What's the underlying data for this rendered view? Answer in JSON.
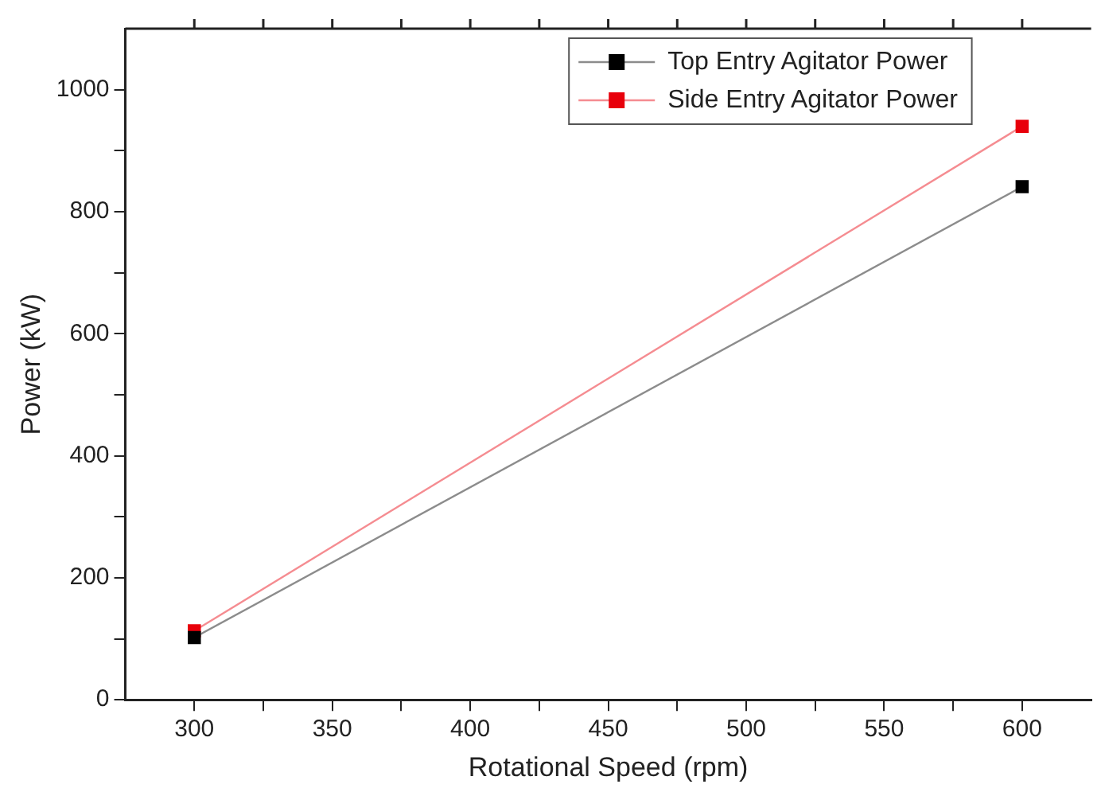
{
  "chart_data": {
    "type": "line",
    "xlabel": "Rotational Speed (rpm)",
    "ylabel": "Power (kW)",
    "x": [
      300,
      600
    ],
    "series": [
      {
        "name": "Top Entry Agitator Power",
        "color": "#000000",
        "values": [
          102,
          841
        ]
      },
      {
        "name": "Side Entry Agitator Power",
        "color": "#e8000b",
        "values": [
          113,
          940
        ]
      }
    ],
    "xlim": [
      275,
      625
    ],
    "xticks": [
      300,
      {
        "value": 325,
        "label": null
      },
      350,
      {
        "value": 375,
        "label": null
      },
      400,
      {
        "value": 425,
        "label": null
      },
      450,
      {
        "value": 475,
        "label": null
      },
      500,
      {
        "value": 525,
        "label": null
      },
      550,
      {
        "value": 575,
        "label": null
      },
      600
    ],
    "ylim": [
      0,
      1100
    ],
    "yticks": [
      0,
      {
        "value": 100,
        "label": null
      },
      200,
      {
        "value": 300,
        "label": null
      },
      400,
      {
        "value": 500,
        "label": null
      },
      600,
      {
        "value": 700,
        "label": null
      },
      800,
      {
        "value": 900,
        "label": null
      },
      1000
    ],
    "grid": false,
    "legend": "top right",
    "marker": "square",
    "line_style": "solid"
  }
}
